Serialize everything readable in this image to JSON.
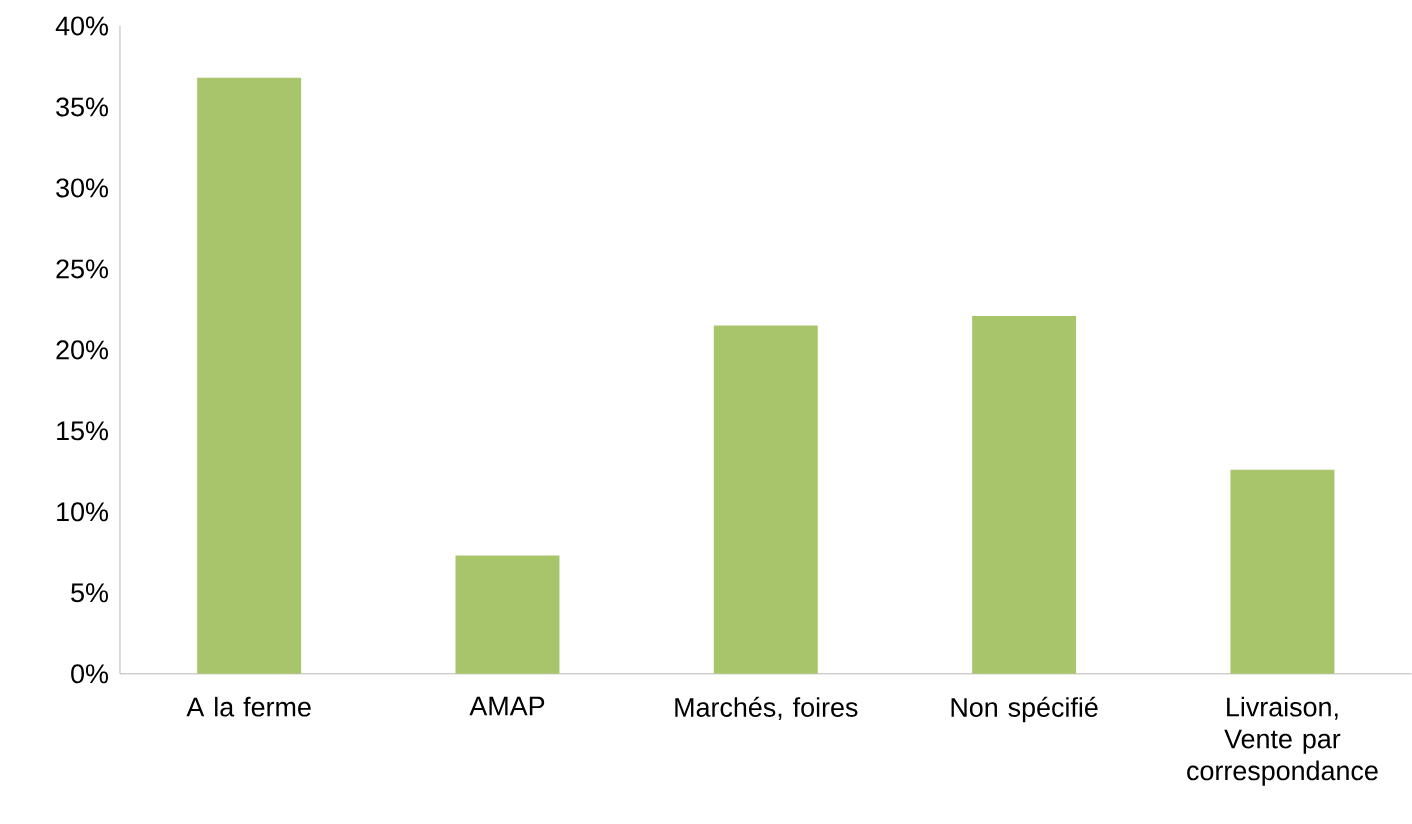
{
  "chart_data": {
    "type": "bar",
    "categories": [
      "A la ferme",
      "AMAP",
      "Marchés, foires",
      "Non spécifié",
      "Livraison, Vente par correspondance"
    ],
    "values": [
      36.8,
      7.3,
      21.5,
      22.1,
      12.6
    ],
    "color": "#a9c56c",
    "ylim": [
      0,
      40
    ],
    "yticks": [
      {
        "value": 0,
        "label": "0%"
      },
      {
        "value": 5,
        "label": "5%"
      },
      {
        "value": 10,
        "label": "10%"
      },
      {
        "value": 15,
        "label": "15%"
      },
      {
        "value": 20,
        "label": "20%"
      },
      {
        "value": 25,
        "label": "25%"
      },
      {
        "value": 30,
        "label": "30%"
      },
      {
        "value": 35,
        "label": "35%"
      },
      {
        "value": 40,
        "label": "40%"
      }
    ],
    "grid": false
  }
}
